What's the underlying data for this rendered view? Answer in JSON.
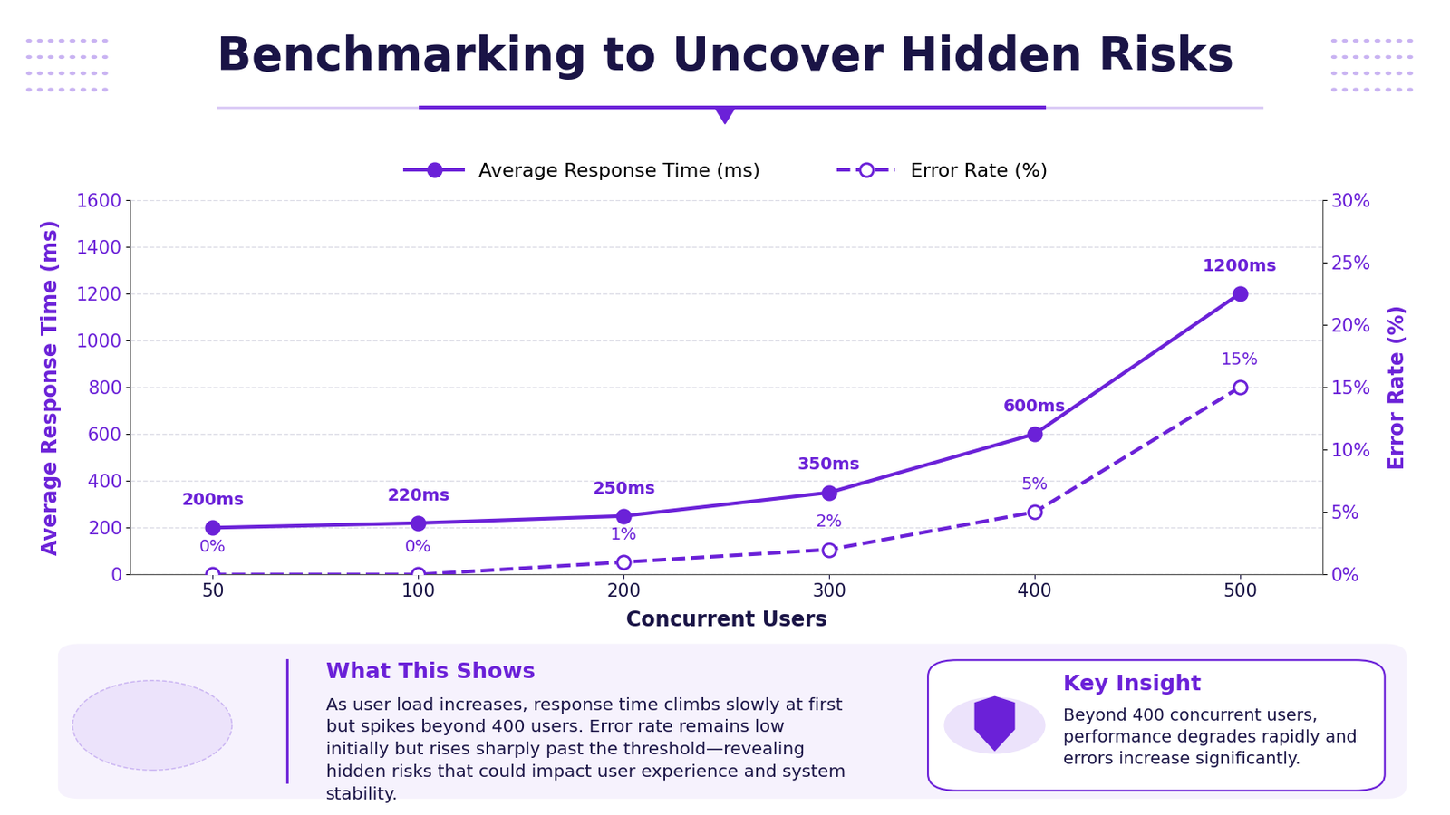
{
  "chart_data": {
    "type": "line",
    "title": "Benchmarking to Uncover Hidden Risks",
    "x_label": "Concurrent Users",
    "y_label": "Average Response Time (ms)",
    "y2_label": "Error Rate (%)",
    "categories": [
      "50",
      "100",
      "200",
      "300",
      "400",
      "500"
    ],
    "ylim": [
      0,
      1600
    ],
    "yticks": [
      0,
      200,
      400,
      600,
      800,
      1000,
      1200,
      1400,
      1600
    ],
    "y2lim": [
      0,
      30
    ],
    "y2ticks": [
      {
        "value": 0,
        "label": "0%"
      },
      {
        "value": 5,
        "label": "5%"
      },
      {
        "value": 10,
        "label": "10%"
      },
      {
        "value": 15,
        "label": "15%"
      },
      {
        "value": 20,
        "label": "20%"
      },
      {
        "value": 25,
        "label": "25%"
      },
      {
        "value": 30,
        "label": "30%"
      }
    ],
    "grid": true,
    "legend": "upper center",
    "data_labels": true,
    "series": [
      {
        "name": "Average Response Time (ms)",
        "color": "#6b21d8",
        "marker": "o",
        "line_style": "solid",
        "values": [
          200,
          220,
          250,
          350,
          600,
          1200
        ],
        "value_labels": [
          "200ms",
          "220ms",
          "250ms",
          "350ms",
          "600ms",
          "1200ms"
        ]
      },
      {
        "name": "Error Rate (%)",
        "color": "#6b21d8",
        "marker": "o",
        "line_style": "dashed",
        "axis": "y2",
        "values": [
          0,
          0,
          1,
          2,
          5,
          15
        ],
        "value_labels": [
          "0%",
          "0%",
          "1%",
          "2%",
          "5%",
          "15%"
        ]
      }
    ]
  },
  "panel": {
    "what_this_shows": {
      "title": "What This Shows",
      "text": "As user load increases, response time climbs slowly at first but spikes beyond 400 users. Error rate remains low initially but rises sharply past the threshold—revealing hidden risks that could impact user experience and system stability."
    },
    "key_insight": {
      "title": "Key Insight",
      "text": "Beyond 400 concurrent users, performance degrades rapidly and errors increase significantly."
    }
  }
}
